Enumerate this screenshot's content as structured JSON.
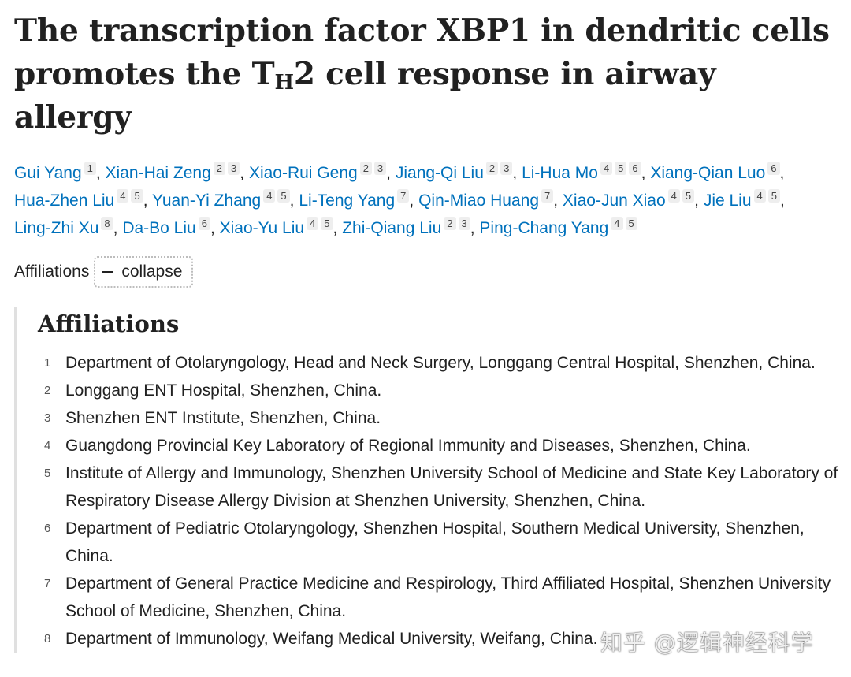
{
  "article": {
    "title_part1": "The transcription factor XBP1 in dendritic cells promotes the T",
    "title_sub": "H",
    "title_part2": "2 cell response in airway allergy"
  },
  "authors": [
    {
      "name": "Gui Yang",
      "refs": [
        "1"
      ]
    },
    {
      "name": "Xian-Hai Zeng",
      "refs": [
        "2",
        "3"
      ]
    },
    {
      "name": "Xiao-Rui Geng",
      "refs": [
        "2",
        "3"
      ]
    },
    {
      "name": "Jiang-Qi Liu",
      "refs": [
        "2",
        "3"
      ]
    },
    {
      "name": "Li-Hua Mo",
      "refs": [
        "4",
        "5",
        "6"
      ]
    },
    {
      "name": "Xiang-Qian Luo",
      "refs": [
        "6"
      ]
    },
    {
      "name": "Hua-Zhen Liu",
      "refs": [
        "4",
        "5"
      ]
    },
    {
      "name": "Yuan-Yi Zhang",
      "refs": [
        "4",
        "5"
      ]
    },
    {
      "name": "Li-Teng Yang",
      "refs": [
        "7"
      ]
    },
    {
      "name": "Qin-Miao Huang",
      "refs": [
        "7"
      ]
    },
    {
      "name": "Xiao-Jun Xiao",
      "refs": [
        "4",
        "5"
      ]
    },
    {
      "name": "Jie Liu",
      "refs": [
        "4",
        "5"
      ]
    },
    {
      "name": "Ling-Zhi Xu",
      "refs": [
        "8"
      ]
    },
    {
      "name": "Da-Bo Liu",
      "refs": [
        "6"
      ]
    },
    {
      "name": "Xiao-Yu Liu",
      "refs": [
        "4",
        "5"
      ]
    },
    {
      "name": "Zhi-Qiang Liu",
      "refs": [
        "2",
        "3"
      ]
    },
    {
      "name": "Ping-Chang Yang",
      "refs": [
        "4",
        "5"
      ]
    }
  ],
  "affiliations_toggle": {
    "label": "Affiliations",
    "button_label": "collapse"
  },
  "affiliations": {
    "heading": "Affiliations",
    "items": [
      {
        "num": "1",
        "text": "Department of Otolaryngology, Head and Neck Surgery, Longgang Central Hospital, Shenzhen, China."
      },
      {
        "num": "2",
        "text": "Longgang ENT Hospital, Shenzhen, China."
      },
      {
        "num": "3",
        "text": "Shenzhen ENT Institute, Shenzhen, China."
      },
      {
        "num": "4",
        "text": "Guangdong Provincial Key Laboratory of Regional Immunity and Diseases, Shenzhen, China."
      },
      {
        "num": "5",
        "text": "Institute of Allergy and Immunology, Shenzhen University School of Medicine and State Key Laboratory of Respiratory Disease Allergy Division at Shenzhen University, Shenzhen, China."
      },
      {
        "num": "6",
        "text": "Department of Pediatric Otolaryngology, Shenzhen Hospital, Southern Medical University, Shenzhen, China."
      },
      {
        "num": "7",
        "text": "Department of General Practice Medicine and Respirology, Third Affiliated Hospital, Shenzhen University School of Medicine, Shenzhen, China."
      },
      {
        "num": "8",
        "text": "Department of Immunology, Weifang Medical University, Weifang, China."
      }
    ]
  },
  "watermark": {
    "text": "知乎 @逻辑神经科学"
  }
}
